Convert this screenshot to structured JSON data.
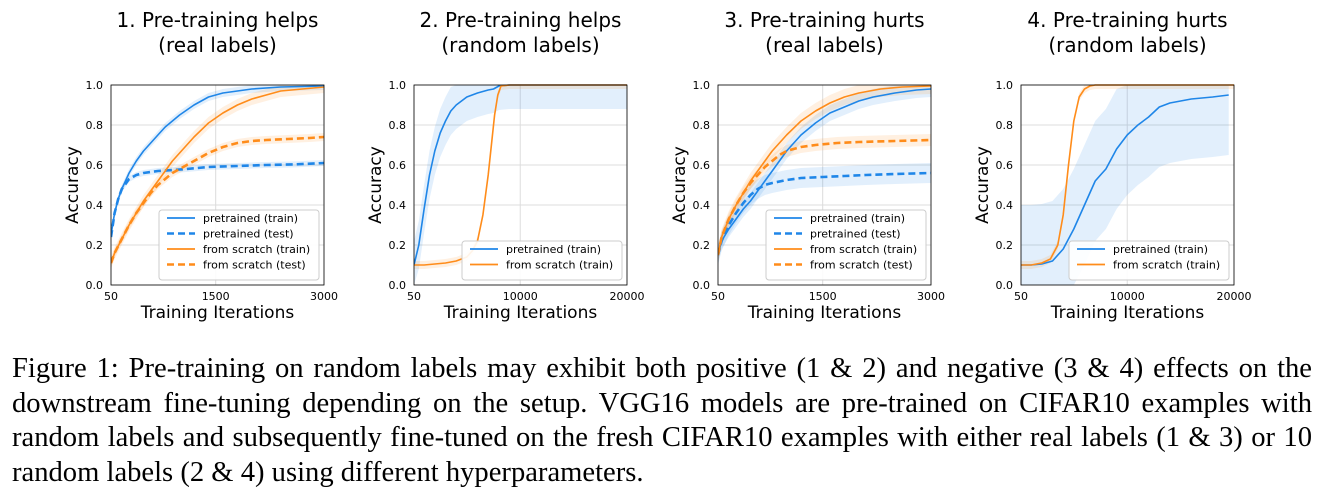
{
  "caption": "Figure 1: Pre-training on random labels may exhibit both positive (1 & 2) and negative (3 & 4) effects on the downstream fine-tuning depending on the setup. VGG16 models are pre-trained on CIFAR10 examples with random labels and subsequently fine-tuned on the fresh CIFAR10 examples with either real labels (1 & 3) or 10 random labels (2 & 4) using different hyperparameters.",
  "colors": {
    "pretrained": "#1f86e8",
    "scratch": "#ff8c1a",
    "grid": "#dcdcdc"
  },
  "chart_data": [
    {
      "type": "line",
      "title": [
        "1. Pre-training helps",
        "(real labels)"
      ],
      "xlabel": "Training Iterations",
      "ylabel": "Accuracy",
      "xlim": [
        50,
        3000
      ],
      "ylim": [
        0,
        1
      ],
      "xticks": [
        50,
        1500,
        3000
      ],
      "yticks": [
        "0.0",
        "0.2",
        "0.4",
        "0.6",
        "0.8",
        "1.0"
      ],
      "grid": true,
      "legend": "lower-right",
      "series": [
        {
          "name": "pretrained (train)",
          "color_key": "pretrained",
          "dashed": false,
          "band": 0.02,
          "points": [
            [
              50,
              0.25
            ],
            [
              100,
              0.36
            ],
            [
              150,
              0.43
            ],
            [
              200,
              0.48
            ],
            [
              300,
              0.56
            ],
            [
              400,
              0.62
            ],
            [
              500,
              0.67
            ],
            [
              600,
              0.71
            ],
            [
              700,
              0.75
            ],
            [
              800,
              0.79
            ],
            [
              900,
              0.82
            ],
            [
              1000,
              0.85
            ],
            [
              1200,
              0.9
            ],
            [
              1400,
              0.94
            ],
            [
              1600,
              0.96
            ],
            [
              1800,
              0.97
            ],
            [
              2000,
              0.98
            ],
            [
              2400,
              0.99
            ],
            [
              3000,
              0.995
            ]
          ]
        },
        {
          "name": "pretrained (test)",
          "color_key": "pretrained",
          "dashed": true,
          "band": 0.015,
          "points": [
            [
              50,
              0.24
            ],
            [
              100,
              0.36
            ],
            [
              150,
              0.43
            ],
            [
              200,
              0.48
            ],
            [
              300,
              0.53
            ],
            [
              400,
              0.55
            ],
            [
              500,
              0.56
            ],
            [
              700,
              0.57
            ],
            [
              900,
              0.575
            ],
            [
              1100,
              0.58
            ],
            [
              1400,
              0.59
            ],
            [
              1800,
              0.595
            ],
            [
              2200,
              0.6
            ],
            [
              2600,
              0.603
            ],
            [
              3000,
              0.61
            ]
          ]
        },
        {
          "name": "from scratch (train)",
          "color_key": "scratch",
          "dashed": false,
          "band": 0.03,
          "points": [
            [
              50,
              0.11
            ],
            [
              100,
              0.16
            ],
            [
              200,
              0.23
            ],
            [
              300,
              0.3
            ],
            [
              400,
              0.36
            ],
            [
              500,
              0.42
            ],
            [
              600,
              0.47
            ],
            [
              700,
              0.52
            ],
            [
              800,
              0.57
            ],
            [
              900,
              0.62
            ],
            [
              1000,
              0.66
            ],
            [
              1200,
              0.74
            ],
            [
              1400,
              0.81
            ],
            [
              1600,
              0.86
            ],
            [
              1800,
              0.9
            ],
            [
              2000,
              0.93
            ],
            [
              2200,
              0.95
            ],
            [
              2400,
              0.97
            ],
            [
              2700,
              0.98
            ],
            [
              3000,
              0.99
            ]
          ]
        },
        {
          "name": "from scratch (test)",
          "color_key": "scratch",
          "dashed": true,
          "band": 0.02,
          "points": [
            [
              50,
              0.11
            ],
            [
              100,
              0.16
            ],
            [
              200,
              0.23
            ],
            [
              300,
              0.3
            ],
            [
              400,
              0.36
            ],
            [
              500,
              0.41
            ],
            [
              600,
              0.46
            ],
            [
              700,
              0.5
            ],
            [
              800,
              0.53
            ],
            [
              900,
              0.56
            ],
            [
              1000,
              0.58
            ],
            [
              1200,
              0.62
            ],
            [
              1400,
              0.66
            ],
            [
              1600,
              0.69
            ],
            [
              1800,
              0.71
            ],
            [
              2000,
              0.72
            ],
            [
              2200,
              0.725
            ],
            [
              2500,
              0.73
            ],
            [
              2800,
              0.735
            ],
            [
              3000,
              0.74
            ]
          ]
        }
      ]
    },
    {
      "type": "line",
      "title": [
        "2. Pre-training helps",
        "(random labels)"
      ],
      "xlabel": "Training Iterations",
      "ylabel": "Accuracy",
      "xlim": [
        50,
        20000
      ],
      "ylim": [
        0,
        1
      ],
      "xticks": [
        50,
        10000,
        20000
      ],
      "yticks": [
        "0.0",
        "0.2",
        "0.4",
        "0.6",
        "0.8",
        "1.0"
      ],
      "grid": true,
      "legend": "lower-right",
      "series": [
        {
          "name": "pretrained (train)",
          "color_key": "pretrained",
          "dashed": false,
          "band": 0.12,
          "points": [
            [
              50,
              0.1
            ],
            [
              500,
              0.2
            ],
            [
              1000,
              0.38
            ],
            [
              1500,
              0.55
            ],
            [
              2000,
              0.67
            ],
            [
              2500,
              0.76
            ],
            [
              3000,
              0.82
            ],
            [
              3500,
              0.87
            ],
            [
              4000,
              0.9
            ],
            [
              5000,
              0.94
            ],
            [
              6000,
              0.96
            ],
            [
              7000,
              0.975
            ],
            [
              7500,
              0.98
            ],
            [
              8000,
              0.995
            ],
            [
              9000,
              1.0
            ],
            [
              20000,
              1.0
            ]
          ]
        },
        {
          "name": "from scratch (train)",
          "color_key": "scratch",
          "dashed": false,
          "band": 0.02,
          "points": [
            [
              50,
              0.1
            ],
            [
              1000,
              0.1
            ],
            [
              2000,
              0.105
            ],
            [
              3000,
              0.11
            ],
            [
              4000,
              0.12
            ],
            [
              5000,
              0.14
            ],
            [
              5500,
              0.17
            ],
            [
              6000,
              0.22
            ],
            [
              6500,
              0.35
            ],
            [
              7000,
              0.55
            ],
            [
              7300,
              0.7
            ],
            [
              7600,
              0.85
            ],
            [
              7900,
              0.95
            ],
            [
              8200,
              0.995
            ],
            [
              9000,
              1.0
            ],
            [
              20000,
              1.0
            ]
          ]
        }
      ]
    },
    {
      "type": "line",
      "title": [
        "3. Pre-training hurts",
        "(real labels)"
      ],
      "xlabel": "Training Iterations",
      "ylabel": "Accuracy",
      "xlim": [
        50,
        3000
      ],
      "ylim": [
        0,
        1
      ],
      "xticks": [
        50,
        1500,
        3000
      ],
      "yticks": [
        "0.0",
        "0.2",
        "0.4",
        "0.6",
        "0.8",
        "1.0"
      ],
      "grid": true,
      "legend": "lower-right",
      "series": [
        {
          "name": "pretrained (train)",
          "color_key": "pretrained",
          "dashed": false,
          "band": 0.04,
          "points": [
            [
              50,
              0.15
            ],
            [
              100,
              0.22
            ],
            [
              200,
              0.28
            ],
            [
              300,
              0.33
            ],
            [
              400,
              0.38
            ],
            [
              500,
              0.42
            ],
            [
              600,
              0.47
            ],
            [
              700,
              0.52
            ],
            [
              800,
              0.57
            ],
            [
              900,
              0.62
            ],
            [
              1000,
              0.67
            ],
            [
              1200,
              0.75
            ],
            [
              1400,
              0.81
            ],
            [
              1600,
              0.86
            ],
            [
              1800,
              0.89
            ],
            [
              2000,
              0.92
            ],
            [
              2200,
              0.94
            ],
            [
              2500,
              0.96
            ],
            [
              2800,
              0.975
            ],
            [
              3000,
              0.98
            ]
          ]
        },
        {
          "name": "pretrained (test)",
          "color_key": "pretrained",
          "dashed": true,
          "band": 0.05,
          "points": [
            [
              50,
              0.15
            ],
            [
              100,
              0.22
            ],
            [
              200,
              0.3
            ],
            [
              300,
              0.36
            ],
            [
              400,
              0.41
            ],
            [
              500,
              0.45
            ],
            [
              600,
              0.48
            ],
            [
              700,
              0.5
            ],
            [
              800,
              0.51
            ],
            [
              1000,
              0.525
            ],
            [
              1200,
              0.535
            ],
            [
              1500,
              0.54
            ],
            [
              1800,
              0.545
            ],
            [
              2100,
              0.55
            ],
            [
              2500,
              0.555
            ],
            [
              3000,
              0.56
            ]
          ]
        },
        {
          "name": "from scratch (train)",
          "color_key": "scratch",
          "dashed": false,
          "band": 0.04,
          "points": [
            [
              50,
              0.15
            ],
            [
              100,
              0.24
            ],
            [
              200,
              0.33
            ],
            [
              300,
              0.4
            ],
            [
              400,
              0.46
            ],
            [
              500,
              0.52
            ],
            [
              600,
              0.57
            ],
            [
              700,
              0.62
            ],
            [
              800,
              0.67
            ],
            [
              900,
              0.71
            ],
            [
              1000,
              0.75
            ],
            [
              1200,
              0.82
            ],
            [
              1400,
              0.87
            ],
            [
              1600,
              0.91
            ],
            [
              1800,
              0.94
            ],
            [
              2000,
              0.96
            ],
            [
              2300,
              0.98
            ],
            [
              2600,
              0.99
            ],
            [
              3000,
              0.995
            ]
          ]
        },
        {
          "name": "from scratch (test)",
          "color_key": "scratch",
          "dashed": true,
          "band": 0.03,
          "points": [
            [
              50,
              0.15
            ],
            [
              100,
              0.24
            ],
            [
              200,
              0.33
            ],
            [
              300,
              0.4
            ],
            [
              400,
              0.46
            ],
            [
              500,
              0.51
            ],
            [
              600,
              0.55
            ],
            [
              700,
              0.59
            ],
            [
              800,
              0.62
            ],
            [
              900,
              0.65
            ],
            [
              1000,
              0.67
            ],
            [
              1200,
              0.69
            ],
            [
              1400,
              0.7
            ],
            [
              1700,
              0.71
            ],
            [
              2000,
              0.715
            ],
            [
              2500,
              0.72
            ],
            [
              3000,
              0.725
            ]
          ]
        }
      ]
    },
    {
      "type": "line",
      "title": [
        "4. Pre-training hurts",
        "(random labels)"
      ],
      "xlabel": "Training Iterations",
      "ylabel": "Accuracy",
      "xlim": [
        50,
        20000
      ],
      "ylim": [
        0,
        1
      ],
      "xticks": [
        50,
        10000,
        20000
      ],
      "yticks": [
        "0.0",
        "0.2",
        "0.4",
        "0.6",
        "0.8",
        "1.0"
      ],
      "grid": true,
      "legend": "lower-right",
      "series": [
        {
          "name": "pretrained (train)",
          "color_key": "pretrained",
          "dashed": false,
          "band": 0.3,
          "points": [
            [
              50,
              0.1
            ],
            [
              1000,
              0.1
            ],
            [
              2000,
              0.105
            ],
            [
              3000,
              0.12
            ],
            [
              4000,
              0.18
            ],
            [
              5000,
              0.28
            ],
            [
              6000,
              0.4
            ],
            [
              7000,
              0.52
            ],
            [
              7500,
              0.55
            ],
            [
              8000,
              0.58
            ],
            [
              9000,
              0.68
            ],
            [
              10000,
              0.75
            ],
            [
              11000,
              0.8
            ],
            [
              12000,
              0.84
            ],
            [
              13000,
              0.89
            ],
            [
              14000,
              0.91
            ],
            [
              16000,
              0.93
            ],
            [
              18000,
              0.94
            ],
            [
              19500,
              0.95
            ]
          ]
        },
        {
          "name": "from scratch (train)",
          "color_key": "scratch",
          "dashed": false,
          "band": 0.02,
          "points": [
            [
              50,
              0.1
            ],
            [
              1000,
              0.1
            ],
            [
              2000,
              0.11
            ],
            [
              2800,
              0.13
            ],
            [
              3500,
              0.2
            ],
            [
              4000,
              0.35
            ],
            [
              4500,
              0.6
            ],
            [
              5000,
              0.82
            ],
            [
              5500,
              0.94
            ],
            [
              6000,
              0.98
            ],
            [
              6500,
              0.995
            ],
            [
              7000,
              1.0
            ],
            [
              20000,
              1.0
            ]
          ]
        }
      ]
    }
  ]
}
